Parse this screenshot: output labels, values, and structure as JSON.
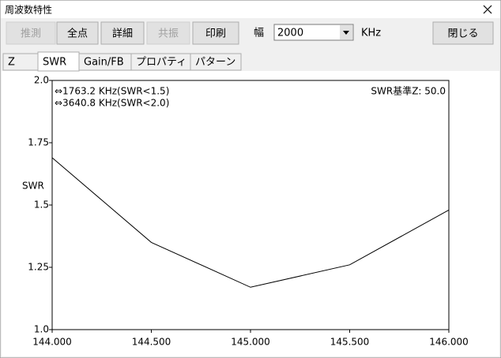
{
  "window": {
    "title": "周波数特性"
  },
  "toolbar": {
    "buttons": [
      {
        "label": "推測",
        "enabled": false
      },
      {
        "label": "全点",
        "enabled": true
      },
      {
        "label": "詳細",
        "enabled": true
      },
      {
        "label": "共振",
        "enabled": false
      },
      {
        "label": "印刷",
        "enabled": true
      }
    ],
    "width_label": "幅",
    "width_value": "2000",
    "unit": "KHz",
    "close_button": "閉じる"
  },
  "tabs": [
    "Z",
    "SWR",
    "Gain/FB",
    "プロパティ",
    "パターン"
  ],
  "selected_tab": 1,
  "chart_data": {
    "type": "line",
    "ylabel": "SWR",
    "annotations": [
      "⇔1763.2 KHz(SWR<1.5)",
      "⇔3640.8 KHz(SWR<2.0)",
      "SWR基準Z: 50.0"
    ],
    "x": [
      144.0,
      144.5,
      145.0,
      145.5,
      146.0
    ],
    "values": [
      1.69,
      1.35,
      1.17,
      1.26,
      1.48
    ],
    "color": "#000000",
    "xlim": [
      144.0,
      146.0
    ],
    "xticks": [
      {
        "value": 144.0,
        "label": "144.000"
      },
      {
        "value": 144.5,
        "label": "144.500"
      },
      {
        "value": 145.0,
        "label": "145.000"
      },
      {
        "value": 145.5,
        "label": "145.500"
      },
      {
        "value": 146.0,
        "label": "146.000"
      }
    ],
    "ylim": [
      1.0,
      2.0
    ],
    "yticks": [
      {
        "value": 1.0,
        "label": "1.0"
      },
      1.25,
      1.5,
      1.75,
      {
        "value": 2.0,
        "label": "2.0"
      }
    ]
  }
}
